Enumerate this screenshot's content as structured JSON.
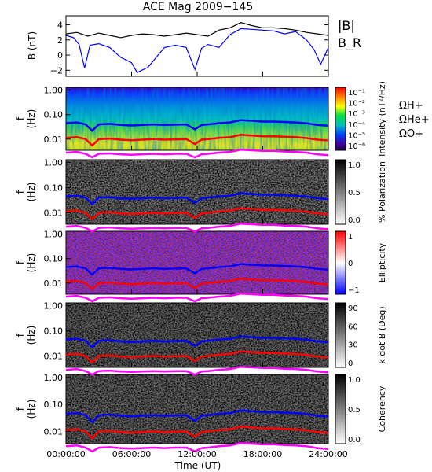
{
  "chart_data": [
    {
      "type": "line",
      "title": "ACE Mag 2009−145",
      "ylabel": "B (nT)",
      "xlim": [
        "00:00:00",
        "24:00:00"
      ],
      "ylim": [
        -2.8,
        5.2
      ],
      "yticks": [
        "4",
        "2",
        "0",
        "−2"
      ],
      "series": [
        {
          "name": "|B|",
          "color": "#000000",
          "x": [
            0,
            1,
            2,
            3,
            4,
            5,
            6,
            7,
            8,
            9,
            10,
            11,
            12,
            13,
            14,
            15,
            16,
            17,
            18,
            19,
            20,
            21,
            22,
            23,
            24
          ],
          "values": [
            2.8,
            3.0,
            2.5,
            2.9,
            2.6,
            2.3,
            2.6,
            2.8,
            2.7,
            2.5,
            2.7,
            2.9,
            2.7,
            2.5,
            3.3,
            3.6,
            4.3,
            3.9,
            3.6,
            3.6,
            3.5,
            3.3,
            3.0,
            2.8,
            2.6
          ]
        },
        {
          "name": "B_R",
          "color": "#0000ff",
          "x": [
            0,
            0.7,
            1.2,
            1.7,
            2.2,
            3,
            4,
            5,
            6,
            6.5,
            7.5,
            9,
            10,
            11,
            11.8,
            12.4,
            13,
            14,
            15,
            16,
            17,
            18,
            19,
            20,
            21,
            22,
            22.7,
            23.3,
            24
          ],
          "values": [
            2.6,
            2.3,
            1.4,
            -1.7,
            1.3,
            1.5,
            1.0,
            -0.3,
            -1.0,
            -2.3,
            -1.6,
            1.0,
            1.3,
            1.0,
            -1.9,
            0.9,
            1.4,
            1.0,
            2.7,
            3.5,
            3.4,
            3.3,
            3.2,
            2.8,
            3.1,
            2.0,
            0.7,
            -1.2,
            1.0
          ]
        }
      ]
    },
    {
      "type": "heatmap",
      "ylabel": "f (Hz)",
      "yticks": [
        "1.00",
        "0.10",
        "0.01"
      ],
      "colorbar_label": "Intensity (nT²/Hz)",
      "colorbar_ticks": [
        "10⁻¹",
        "10⁻²",
        "10⁻³",
        "10⁻⁴",
        "10⁻⁵",
        "10⁻⁶"
      ],
      "legend": [
        {
          "label": "ΩH+",
          "color": "#0000ff"
        },
        {
          "label": "ΩHe+",
          "color": "#ff0000"
        },
        {
          "label": "ΩO+",
          "color": "#ff00ff"
        }
      ]
    },
    {
      "type": "heatmap",
      "ylabel": "f (Hz)",
      "yticks": [
        "1.00",
        "0.10",
        "0.01"
      ],
      "colorbar_label": "% Polarization",
      "colorbar_ticks": [
        "1.0",
        "0.5",
        "0.0"
      ]
    },
    {
      "type": "heatmap",
      "ylabel": "f (Hz)",
      "yticks": [
        "1.00",
        "0.10",
        "0.01"
      ],
      "colorbar_label": "Ellipticity",
      "colorbar_ticks": [
        "1",
        "0",
        "−1"
      ]
    },
    {
      "type": "heatmap",
      "ylabel": "f (Hz)",
      "yticks": [
        "1.00",
        "0.10",
        "0.01"
      ],
      "colorbar_label": "k dot B (Deg)",
      "colorbar_ticks": [
        "90",
        "60",
        "30",
        "0"
      ]
    },
    {
      "type": "heatmap",
      "ylabel": "f (Hz)",
      "yticks": [
        "1.00",
        "0.10",
        "0.01"
      ],
      "colorbar_label": "Coherency",
      "colorbar_ticks": [
        "1.0",
        "0.5",
        "0.0"
      ],
      "xlabel": "Time (UT)",
      "xticks": [
        "00:00:00",
        "06:00:00",
        "12:00:00",
        "18:00:00",
        "24:00:00"
      ]
    }
  ],
  "gyro_lines": {
    "hours": [
      0,
      1,
      1.8,
      2.4,
      3,
      4,
      5,
      6,
      7,
      8,
      9,
      10,
      11,
      11.8,
      12.4,
      13,
      14,
      15,
      16,
      17,
      18,
      19,
      20,
      21,
      22,
      23,
      24
    ],
    "H_hz": [
      0.045,
      0.048,
      0.04,
      0.022,
      0.04,
      0.042,
      0.038,
      0.036,
      0.038,
      0.04,
      0.038,
      0.039,
      0.04,
      0.025,
      0.038,
      0.04,
      0.045,
      0.048,
      0.06,
      0.056,
      0.052,
      0.052,
      0.05,
      0.048,
      0.044,
      0.038,
      0.035
    ],
    "He_hz": [
      0.0112,
      0.012,
      0.01,
      0.0055,
      0.01,
      0.0105,
      0.0095,
      0.009,
      0.0095,
      0.01,
      0.0095,
      0.0098,
      0.01,
      0.0063,
      0.0095,
      0.01,
      0.0112,
      0.012,
      0.015,
      0.014,
      0.013,
      0.013,
      0.0125,
      0.012,
      0.011,
      0.0095,
      0.0088
    ],
    "O_hz": [
      0.0028,
      0.003,
      0.0025,
      0.0018,
      0.0025,
      0.0026,
      0.0024,
      0.0023,
      0.0024,
      0.0025,
      0.0024,
      0.0025,
      0.0025,
      0.0018,
      0.0024,
      0.0025,
      0.0028,
      0.003,
      0.0037,
      0.0035,
      0.0033,
      0.0033,
      0.0031,
      0.003,
      0.0028,
      0.0024,
      0.0022
    ]
  }
}
